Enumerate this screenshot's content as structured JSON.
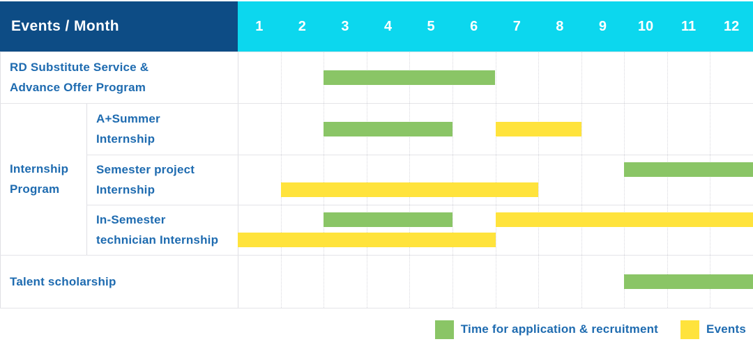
{
  "header": {
    "title": "Events / Month",
    "months": [
      "1",
      "2",
      "3",
      "4",
      "5",
      "6",
      "7",
      "8",
      "9",
      "10",
      "11",
      "12"
    ]
  },
  "colors": {
    "header_bg": "#0d4c85",
    "months_bg": "#0cd7ee",
    "green": "#8ac566",
    "yellow": "#ffe33c",
    "label_text": "#1e6bb0",
    "header_text": "#ffffff",
    "grid_line": "#e4e4e8"
  },
  "legend": [
    {
      "swatch": "green",
      "label": "Time for application & recruitment"
    },
    {
      "swatch": "yellow",
      "label": "Events"
    }
  ],
  "chart_data": {
    "type": "bar",
    "variant": "gantt",
    "title": "Events / Month",
    "x_categories": [
      "1",
      "2",
      "3",
      "4",
      "5",
      "6",
      "7",
      "8",
      "9",
      "10",
      "11",
      "12"
    ],
    "x_range": [
      1,
      12
    ],
    "legend_position": "bottom-right",
    "series_legend": [
      {
        "name": "Time for application & recruitment",
        "color": "#8ac566"
      },
      {
        "name": "Events",
        "color": "#ffe33c"
      }
    ],
    "group_label_lines": [
      "Internship",
      "Program"
    ],
    "rows": [
      {
        "group": "",
        "label_lines": [
          "RD Substitute Service &",
          "Advance Offer Program"
        ],
        "bars": [
          {
            "series": "Time for application & recruitment",
            "color_key": "green",
            "start_month": 3,
            "end_month": 6,
            "lane": "mid"
          }
        ]
      },
      {
        "group": "Internship Program",
        "label_lines": [
          "A+Summer",
          "Internship"
        ],
        "bars": [
          {
            "series": "Time for application & recruitment",
            "color_key": "green",
            "start_month": 3,
            "end_month": 5,
            "lane": "mid"
          },
          {
            "series": "Events",
            "color_key": "yellow",
            "start_month": 7,
            "end_month": 8,
            "lane": "mid"
          }
        ]
      },
      {
        "group": "Internship Program",
        "label_lines": [
          "Semester project",
          "Internship"
        ],
        "bars": [
          {
            "series": "Time for application & recruitment",
            "color_key": "green",
            "start_month": 10,
            "end_month": 12,
            "lane": "top"
          },
          {
            "series": "Events",
            "color_key": "yellow",
            "start_month": 2,
            "end_month": 7,
            "lane": "bottom"
          }
        ]
      },
      {
        "group": "Internship Program",
        "label_lines": [
          "In-Semester",
          "technician Internship"
        ],
        "bars": [
          {
            "series": "Time for application & recruitment",
            "color_key": "green",
            "start_month": 3,
            "end_month": 5,
            "lane": "top"
          },
          {
            "series": "Events",
            "color_key": "yellow",
            "start_month": 7,
            "end_month": 12,
            "lane": "top"
          },
          {
            "series": "Events",
            "color_key": "yellow",
            "start_month": 1,
            "end_month": 6,
            "lane": "bottom"
          }
        ]
      },
      {
        "group": "",
        "label_lines": [
          "Talent scholarship"
        ],
        "bars": [
          {
            "series": "Time for application & recruitment",
            "color_key": "green",
            "start_month": 10,
            "end_month": 12,
            "lane": "mid"
          }
        ]
      }
    ]
  }
}
